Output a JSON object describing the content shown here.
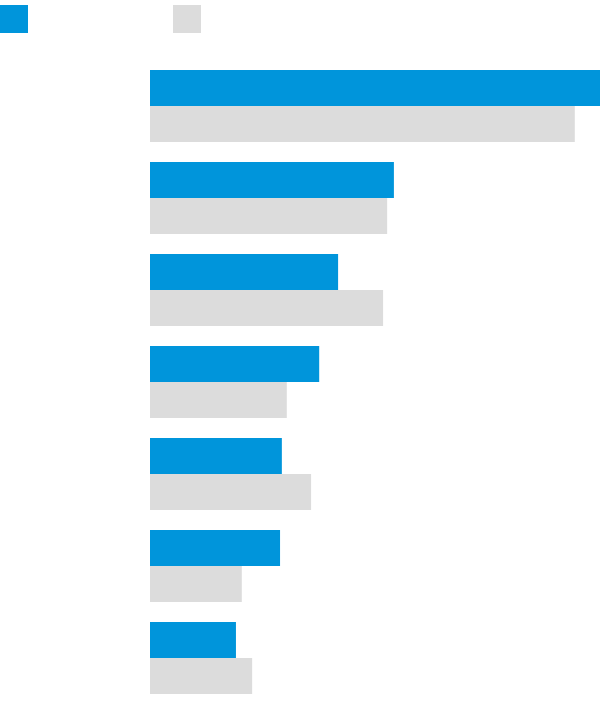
{
  "chart_data": {
    "type": "barh",
    "categories": [
      null,
      null,
      null,
      null,
      null,
      null,
      null
    ],
    "series": [
      {
        "color": "#0095db",
        "values": [
          100,
          54.2,
          41.8,
          37.6,
          29.3,
          28.9,
          19.1
        ]
      },
      {
        "color": "#dcdcdc",
        "values": [
          94.4,
          52.7,
          51.8,
          30.4,
          35.8,
          20.4,
          22.7
        ]
      }
    ],
    "xlim": [
      0,
      100
    ]
  }
}
